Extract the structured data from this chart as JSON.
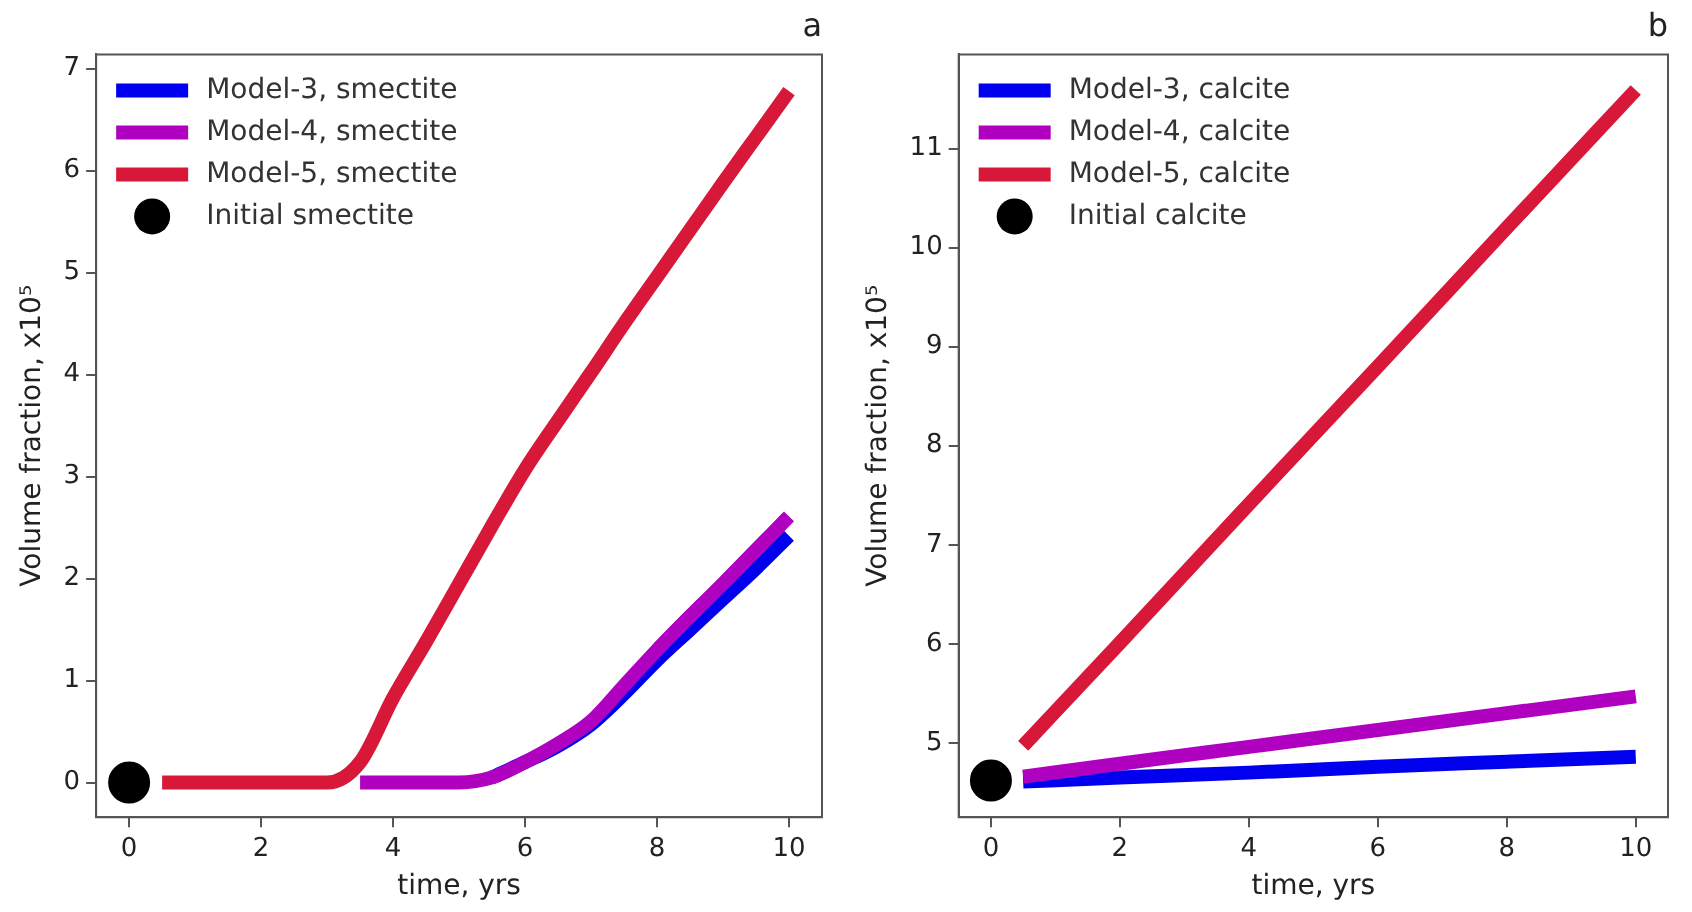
{
  "chart_data": [
    {
      "type": "line",
      "title": "a",
      "xlabel": "time, yrs",
      "ylabel": "Volume fraction, x10⁵",
      "series": [
        {
          "name": "Model-3, smectite",
          "color": "#0000ee",
          "x": [
            5.5,
            6,
            6.5,
            7,
            7.5,
            8,
            8.5,
            9,
            9.5,
            10
          ],
          "values": [
            0.05,
            0.2,
            0.36,
            0.57,
            0.87,
            1.2,
            1.5,
            1.8,
            2.1,
            2.42
          ]
        },
        {
          "name": "Model-4, smectite",
          "color": "#b000c0",
          "x": [
            3.5,
            4,
            4.5,
            5,
            5.5,
            6,
            6.5,
            7,
            7.5,
            8,
            8.5,
            9,
            9.5,
            10
          ],
          "values": [
            0,
            0,
            0,
            0,
            0.05,
            0.2,
            0.38,
            0.6,
            0.95,
            1.3,
            1.63,
            1.95,
            2.28,
            2.61
          ]
        },
        {
          "name": "Model-5, smectite",
          "color": "#d81838",
          "x": [
            0.5,
            1,
            2,
            3,
            3.5,
            4,
            4.5,
            5,
            5.5,
            6,
            6.5,
            7,
            7.5,
            8,
            8.5,
            9,
            9.5,
            10
          ],
          "values": [
            0,
            0,
            0,
            0,
            0.2,
            0.83,
            1.38,
            1.95,
            2.52,
            3.07,
            3.55,
            4.02,
            4.5,
            4.96,
            5.42,
            5.88,
            6.33,
            6.78
          ]
        },
        {
          "name": "Initial smectite",
          "type": "scatter",
          "color": "#000000",
          "x": [
            0
          ],
          "values": [
            0
          ],
          "marker": "circle"
        }
      ],
      "xlim": [
        -0.5,
        10.5
      ],
      "xticks": [
        0,
        2,
        4,
        6,
        8,
        10
      ],
      "ylim": [
        -0.34,
        7.14
      ],
      "yticks": [
        0,
        1,
        2,
        3,
        4,
        5,
        6,
        7
      ],
      "grid": false,
      "legend": "top left",
      "marker": "none"
    },
    {
      "type": "line",
      "title": "b",
      "xlabel": "time, yrs",
      "ylabel": "Volume fraction, x10⁵",
      "x": [
        0.5,
        2,
        4,
        6,
        8,
        10
      ],
      "series": [
        {
          "name": "Model-3, calcite",
          "color": "#0000ee",
          "values": [
            4.61,
            4.65,
            4.7,
            4.76,
            4.81,
            4.86
          ]
        },
        {
          "name": "Model-4, calcite",
          "color": "#b000c0",
          "values": [
            4.66,
            4.79,
            4.96,
            5.13,
            5.3,
            5.47
          ]
        },
        {
          "name": "Model-5, calcite",
          "color": "#d81838",
          "values": [
            4.97,
            6.01,
            7.41,
            8.8,
            10.2,
            11.59
          ]
        },
        {
          "name": "Initial calcite",
          "type": "scatter",
          "color": "#000000",
          "x": [
            0
          ],
          "values": [
            4.62
          ],
          "marker": "circle"
        }
      ],
      "xlim": [
        -0.5,
        10.5
      ],
      "xticks": [
        0,
        2,
        4,
        6,
        8,
        10
      ],
      "ylim": [
        4.25,
        11.95
      ],
      "yticks": [
        5,
        6,
        7,
        8,
        9,
        10,
        11
      ],
      "grid": false,
      "legend": "top left",
      "marker": "none"
    }
  ]
}
